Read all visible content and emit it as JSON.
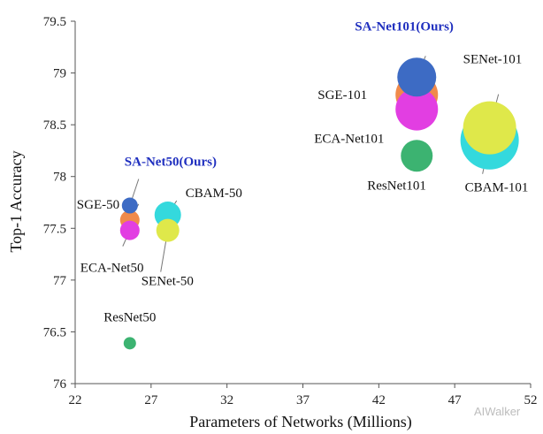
{
  "watermark": "AIWalker",
  "chart_data": {
    "type": "scatter",
    "title": "",
    "xlabel": "Parameters of Networks  (Millions)",
    "ylabel": "Top-1 Accuracy",
    "xlim": [
      22,
      52
    ],
    "ylim": [
      76,
      79.5
    ],
    "xticks": [
      22,
      27,
      32,
      37,
      42,
      47,
      52
    ],
    "yticks": [
      76,
      76.5,
      77,
      77.5,
      78,
      78.5,
      79,
      79.5
    ],
    "grid": false,
    "points": [
      {
        "label": "ResNet50",
        "x": 25.6,
        "y": 76.39,
        "size": 7,
        "color": "#3cb371",
        "highlight": false
      },
      {
        "label": "SGE-50",
        "x": 25.6,
        "y": 77.58,
        "size": 11,
        "color": "#f08a4b",
        "highlight": false
      },
      {
        "label": "ECA-Net50",
        "x": 25.6,
        "y": 77.48,
        "size": 11,
        "color": "#e23ee2",
        "highlight": false
      },
      {
        "label": "SA-Net50(Ours)",
        "x": 25.6,
        "y": 77.72,
        "size": 9,
        "color": "#3d6bc4",
        "highlight": true
      },
      {
        "label": "SENet-50",
        "x": 28.1,
        "y": 77.48,
        "size": 13,
        "color": "#dfe84a",
        "highlight": false
      },
      {
        "label": "CBAM-50",
        "x": 28.1,
        "y": 77.63,
        "size": 15,
        "color": "#34d9dd",
        "highlight": false
      },
      {
        "label": "ResNet101",
        "x": 44.5,
        "y": 78.2,
        "size": 18,
        "color": "#3cb371",
        "highlight": false
      },
      {
        "label": "SGE-101",
        "x": 44.5,
        "y": 78.79,
        "size": 24,
        "color": "#f08a4b",
        "highlight": false
      },
      {
        "label": "ECA-Net101",
        "x": 44.5,
        "y": 78.65,
        "size": 24,
        "color": "#e23ee2",
        "highlight": false
      },
      {
        "label": "SA-Net101(Ours)",
        "x": 44.5,
        "y": 78.96,
        "size": 22,
        "color": "#3d6bc4",
        "highlight": true
      },
      {
        "label": "SENet-101",
        "x": 49.3,
        "y": 78.47,
        "size": 30,
        "color": "#dfe84a",
        "highlight": false
      },
      {
        "label": "CBAM-101",
        "x": 49.3,
        "y": 78.35,
        "size": 33,
        "color": "#34d9dd",
        "highlight": false
      }
    ]
  }
}
